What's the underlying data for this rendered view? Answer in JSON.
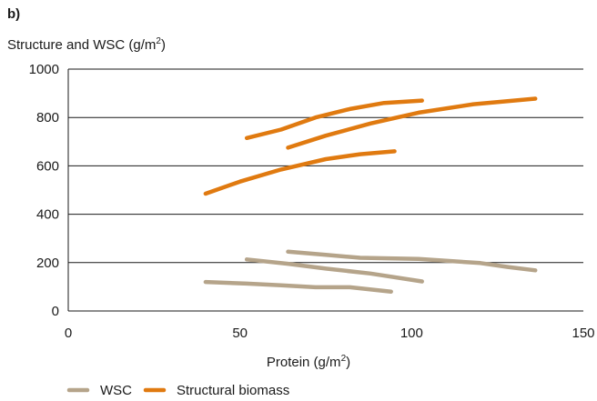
{
  "chart_data": {
    "type": "line",
    "panel_label": "b)",
    "ylabel_main": "Structure and WSC (g/m",
    "ylabel_sup": "2",
    "ylabel_end": ")",
    "xlabel_main": "Protein (g/m",
    "xlabel_sup": "2",
    "xlabel_end": ")",
    "xlim": [
      0,
      150
    ],
    "ylim": [
      0,
      1000
    ],
    "xticks": [
      0,
      50,
      100,
      150
    ],
    "yticks": [
      0,
      200,
      400,
      600,
      800,
      1000
    ],
    "grid": "horizontal",
    "legend_position": "bottom-left",
    "legend": [
      {
        "name": "WSC",
        "color": "#b5a48a"
      },
      {
        "name": "Structural biomass",
        "color": "#e07a10"
      }
    ],
    "series": [
      {
        "group": "Structural biomass",
        "color": "#e07a10",
        "points": [
          [
            52,
            715
          ],
          [
            62,
            750
          ],
          [
            72,
            800
          ],
          [
            82,
            835
          ],
          [
            92,
            860
          ],
          [
            103,
            870
          ]
        ]
      },
      {
        "group": "Structural biomass",
        "color": "#e07a10",
        "points": [
          [
            64,
            675
          ],
          [
            75,
            725
          ],
          [
            88,
            775
          ],
          [
            102,
            820
          ],
          [
            118,
            855
          ],
          [
            136,
            878
          ]
        ]
      },
      {
        "group": "Structural biomass",
        "color": "#e07a10",
        "points": [
          [
            40,
            485
          ],
          [
            50,
            535
          ],
          [
            62,
            585
          ],
          [
            75,
            628
          ],
          [
            85,
            648
          ],
          [
            95,
            660
          ]
        ]
      },
      {
        "group": "WSC",
        "color": "#b5a48a",
        "points": [
          [
            64,
            245
          ],
          [
            75,
            232
          ],
          [
            85,
            220
          ],
          [
            102,
            215
          ],
          [
            120,
            198
          ],
          [
            128,
            182
          ],
          [
            136,
            168
          ]
        ]
      },
      {
        "group": "WSC",
        "color": "#b5a48a",
        "points": [
          [
            52,
            213
          ],
          [
            64,
            195
          ],
          [
            75,
            175
          ],
          [
            88,
            155
          ],
          [
            103,
            122
          ]
        ]
      },
      {
        "group": "WSC",
        "color": "#b5a48a",
        "points": [
          [
            40,
            120
          ],
          [
            52,
            113
          ],
          [
            62,
            106
          ],
          [
            72,
            98
          ],
          [
            82,
            98
          ],
          [
            94,
            80
          ]
        ]
      }
    ]
  }
}
